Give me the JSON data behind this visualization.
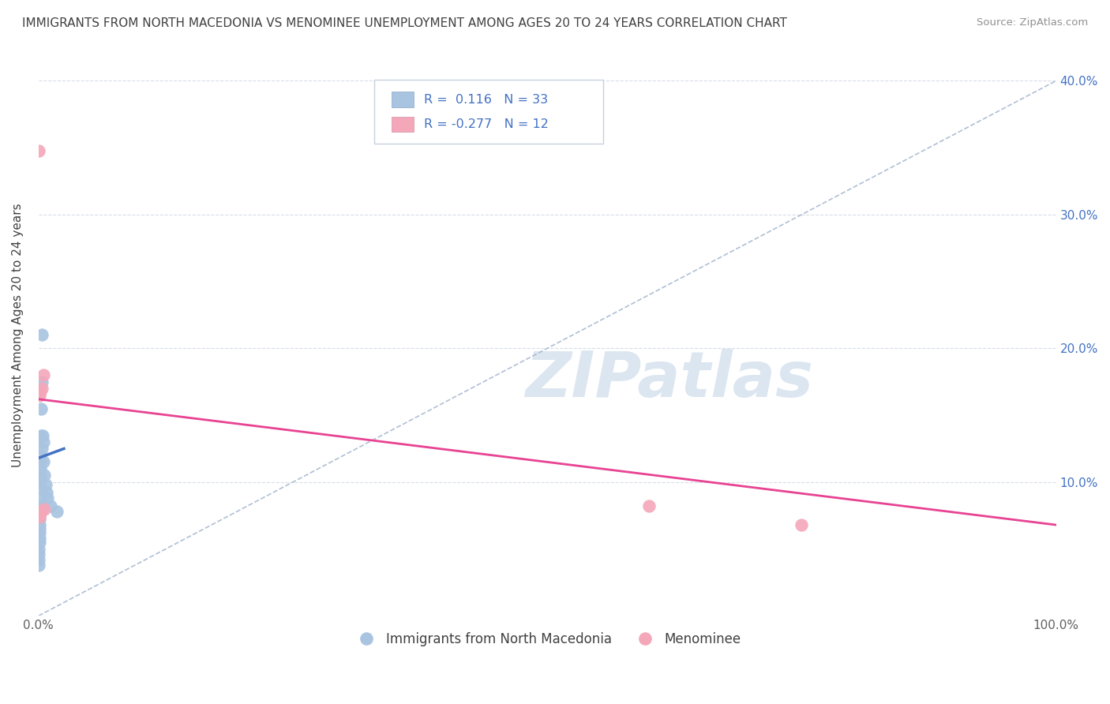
{
  "title": "IMMIGRANTS FROM NORTH MACEDONIA VS MENOMINEE UNEMPLOYMENT AMONG AGES 20 TO 24 YEARS CORRELATION CHART",
  "source": "Source: ZipAtlas.com",
  "ylabel": "Unemployment Among Ages 20 to 24 years",
  "xlim": [
    0,
    1.0
  ],
  "ylim": [
    0,
    0.42
  ],
  "x_tick_positions": [
    0,
    0.25,
    0.5,
    0.75,
    1.0
  ],
  "x_tick_labels": [
    "0.0%",
    "",
    "",
    "",
    "100.0%"
  ],
  "y_tick_positions": [
    0.0,
    0.1,
    0.2,
    0.3,
    0.4
  ],
  "y_tick_labels_left": [
    "",
    "",
    "",
    "",
    ""
  ],
  "y_tick_labels_right": [
    "",
    "10.0%",
    "20.0%",
    "30.0%",
    "40.0%"
  ],
  "R_blue": 0.116,
  "N_blue": 33,
  "R_pink": -0.277,
  "N_pink": 12,
  "blue_x": [
    0.0002,
    0.0003,
    0.0004,
    0.0005,
    0.0006,
    0.0007,
    0.0008,
    0.0009,
    0.001,
    0.001,
    0.0012,
    0.0013,
    0.0014,
    0.0015,
    0.0016,
    0.0017,
    0.0018,
    0.002,
    0.002,
    0.0022,
    0.0025,
    0.003,
    0.003,
    0.0035,
    0.004,
    0.0045,
    0.005,
    0.006,
    0.007,
    0.008,
    0.009,
    0.012,
    0.018
  ],
  "blue_y": [
    0.038,
    0.042,
    0.046,
    0.05,
    0.055,
    0.058,
    0.062,
    0.065,
    0.068,
    0.072,
    0.076,
    0.082,
    0.088,
    0.095,
    0.1,
    0.105,
    0.11,
    0.115,
    0.12,
    0.135,
    0.155,
    0.175,
    0.21,
    0.125,
    0.135,
    0.13,
    0.115,
    0.105,
    0.098,
    0.092,
    0.088,
    0.082,
    0.078
  ],
  "pink_x": [
    0.0003,
    0.0008,
    0.0013,
    0.0018,
    0.003,
    0.0045,
    0.006,
    0.6,
    0.75,
    0.0007,
    0.0012,
    0.0025
  ],
  "pink_y": [
    0.348,
    0.168,
    0.165,
    0.168,
    0.17,
    0.18,
    0.08,
    0.082,
    0.068,
    0.075,
    0.074,
    0.078
  ],
  "blue_color": "#a8c4e0",
  "pink_color": "#f4a7b9",
  "blue_line_color": "#4472c4",
  "pink_line_color": "#e84393",
  "dashed_line_color": "#a8b8d0",
  "watermark_text": "ZIPatlas",
  "watermark_color": "#dce6f0",
  "background_color": "#ffffff",
  "grid_color": "#d8dce8",
  "legend_text_color": "#4472c4",
  "title_color": "#404040",
  "source_color": "#909090",
  "right_axis_color": "#4472c4",
  "bottom_legend_labels": [
    "Immigrants from North Macedonia",
    "Menominee"
  ],
  "blue_line_x0": 0.0,
  "blue_line_x1": 0.025,
  "blue_line_y0": 0.118,
  "blue_line_y1": 0.125,
  "pink_line_x0": 0.0,
  "pink_line_x1": 1.0,
  "pink_line_y0": 0.162,
  "pink_line_y1": 0.068
}
